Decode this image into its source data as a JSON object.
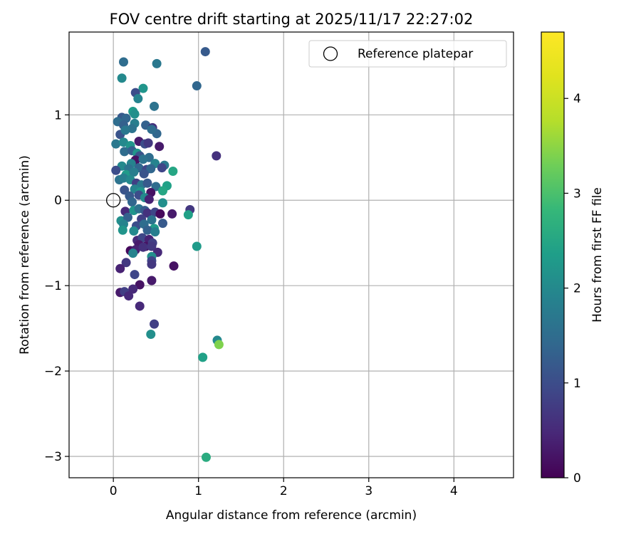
{
  "chart_data": {
    "type": "scatter",
    "title": "FOV centre drift starting at 2025/11/17 22:27:02",
    "xlabel": "Angular distance from reference (arcmin)",
    "ylabel": "Rotation from reference (arcmin)",
    "xlim": [
      -0.52,
      4.7
    ],
    "ylim": [
      -3.25,
      1.97
    ],
    "xticks": [
      0,
      1,
      2,
      3,
      4
    ],
    "yticks": [
      -3,
      -2,
      -1,
      0,
      1
    ],
    "grid": true,
    "legend": {
      "placement": "top-right",
      "entries": [
        "Reference platepar"
      ]
    },
    "reference_point": {
      "x": 0,
      "y": 0
    },
    "colorbar": {
      "label": "Hours from first FF file",
      "range": [
        0,
        4.7
      ],
      "ticks": [
        0,
        1,
        2,
        3,
        4
      ],
      "colormap": "viridis"
    },
    "points": [
      {
        "x": 0.12,
        "y": 1.62,
        "h": 1.5
      },
      {
        "x": 0.51,
        "y": 1.6,
        "h": 1.7
      },
      {
        "x": 1.08,
        "y": 1.74,
        "h": 1.2
      },
      {
        "x": 0.1,
        "y": 1.43,
        "h": 2.0
      },
      {
        "x": 0.35,
        "y": 1.31,
        "h": 2.2
      },
      {
        "x": 0.98,
        "y": 1.34,
        "h": 1.4
      },
      {
        "x": 0.26,
        "y": 1.26,
        "h": 1.0
      },
      {
        "x": 0.29,
        "y": 1.19,
        "h": 1.9
      },
      {
        "x": 0.48,
        "y": 1.1,
        "h": 1.6
      },
      {
        "x": 0.1,
        "y": 0.97,
        "h": 1.2
      },
      {
        "x": 0.15,
        "y": 0.96,
        "h": 1.4
      },
      {
        "x": 0.23,
        "y": 1.04,
        "h": 2.3
      },
      {
        "x": 0.25,
        "y": 1.01,
        "h": 2.1
      },
      {
        "x": 0.05,
        "y": 0.92,
        "h": 1.5
      },
      {
        "x": 0.12,
        "y": 0.88,
        "h": 1.3
      },
      {
        "x": 0.25,
        "y": 0.9,
        "h": 1.8
      },
      {
        "x": 0.22,
        "y": 0.84,
        "h": 1.6
      },
      {
        "x": 0.38,
        "y": 0.88,
        "h": 1.3
      },
      {
        "x": 0.46,
        "y": 0.85,
        "h": 0.6
      },
      {
        "x": 0.08,
        "y": 0.77,
        "h": 1.1
      },
      {
        "x": 0.51,
        "y": 0.78,
        "h": 1.4
      },
      {
        "x": 0.45,
        "y": 0.83,
        "h": 1.5
      },
      {
        "x": 0.14,
        "y": 0.82,
        "h": 1.7
      },
      {
        "x": 0.03,
        "y": 0.66,
        "h": 1.7
      },
      {
        "x": 0.12,
        "y": 0.68,
        "h": 2.0
      },
      {
        "x": 0.2,
        "y": 0.64,
        "h": 2.2
      },
      {
        "x": 0.3,
        "y": 0.69,
        "h": 0.3
      },
      {
        "x": 0.37,
        "y": 0.66,
        "h": 1.0
      },
      {
        "x": 0.41,
        "y": 0.67,
        "h": 0.7
      },
      {
        "x": 0.54,
        "y": 0.63,
        "h": 0.3
      },
      {
        "x": 0.13,
        "y": 0.57,
        "h": 1.5
      },
      {
        "x": 0.22,
        "y": 0.58,
        "h": 1.3
      },
      {
        "x": 0.28,
        "y": 0.55,
        "h": 2.2
      },
      {
        "x": 0.31,
        "y": 0.52,
        "h": 1.1
      },
      {
        "x": 0.42,
        "y": 0.5,
        "h": 1.5
      },
      {
        "x": 1.21,
        "y": 0.52,
        "h": 0.6
      },
      {
        "x": 0.26,
        "y": 0.47,
        "h": 0.2
      },
      {
        "x": 0.35,
        "y": 0.48,
        "h": 1.6
      },
      {
        "x": 0.21,
        "y": 0.43,
        "h": 1.9
      },
      {
        "x": 0.49,
        "y": 0.43,
        "h": 1.9
      },
      {
        "x": 0.6,
        "y": 0.41,
        "h": 1.7
      },
      {
        "x": 0.1,
        "y": 0.4,
        "h": 2.0
      },
      {
        "x": 0.18,
        "y": 0.37,
        "h": 1.6
      },
      {
        "x": 0.3,
        "y": 0.38,
        "h": 1.4
      },
      {
        "x": 0.39,
        "y": 0.36,
        "h": 0.9
      },
      {
        "x": 0.44,
        "y": 0.37,
        "h": 1.4
      },
      {
        "x": 0.57,
        "y": 0.38,
        "h": 0.9
      },
      {
        "x": 0.7,
        "y": 0.34,
        "h": 2.5
      },
      {
        "x": 0.03,
        "y": 0.35,
        "h": 1.0
      },
      {
        "x": 0.15,
        "y": 0.3,
        "h": 2.3
      },
      {
        "x": 0.24,
        "y": 0.33,
        "h": 1.8
      },
      {
        "x": 0.36,
        "y": 0.31,
        "h": 1.1
      },
      {
        "x": 0.07,
        "y": 0.24,
        "h": 1.6
      },
      {
        "x": 0.12,
        "y": 0.26,
        "h": 1.8
      },
      {
        "x": 0.2,
        "y": 0.24,
        "h": 2.0
      },
      {
        "x": 0.27,
        "y": 0.2,
        "h": 0.8
      },
      {
        "x": 0.33,
        "y": 0.18,
        "h": 1.7
      },
      {
        "x": 0.4,
        "y": 0.2,
        "h": 1.2
      },
      {
        "x": 0.5,
        "y": 0.16,
        "h": 1.5
      },
      {
        "x": 0.63,
        "y": 0.17,
        "h": 2.4
      },
      {
        "x": 0.13,
        "y": 0.12,
        "h": 1.1
      },
      {
        "x": 0.25,
        "y": 0.13,
        "h": 1.9
      },
      {
        "x": 0.32,
        "y": 0.1,
        "h": 2.2
      },
      {
        "x": 0.44,
        "y": 0.09,
        "h": 0.2
      },
      {
        "x": 0.58,
        "y": 0.11,
        "h": 2.5
      },
      {
        "x": 0.19,
        "y": 0.05,
        "h": 1.2
      },
      {
        "x": 0.3,
        "y": 0.06,
        "h": 1.0
      },
      {
        "x": 0.37,
        "y": 0.03,
        "h": 2.0
      },
      {
        "x": 0.42,
        "y": 0.01,
        "h": 0.4
      },
      {
        "x": 0.22,
        "y": -0.02,
        "h": 1.4
      },
      {
        "x": 0.58,
        "y": -0.03,
        "h": 2.1
      },
      {
        "x": 0.14,
        "y": -0.13,
        "h": 0.5
      },
      {
        "x": 0.24,
        "y": -0.12,
        "h": 2.2
      },
      {
        "x": 0.3,
        "y": -0.1,
        "h": 1.6
      },
      {
        "x": 0.37,
        "y": -0.12,
        "h": 1.2
      },
      {
        "x": 0.4,
        "y": -0.15,
        "h": 0.6
      },
      {
        "x": 0.49,
        "y": -0.14,
        "h": 0.9
      },
      {
        "x": 0.55,
        "y": -0.16,
        "h": 0.1
      },
      {
        "x": 0.69,
        "y": -0.16,
        "h": 0.3
      },
      {
        "x": 0.9,
        "y": -0.11,
        "h": 0.7
      },
      {
        "x": 0.88,
        "y": -0.17,
        "h": 2.4
      },
      {
        "x": 0.09,
        "y": -0.24,
        "h": 2.1
      },
      {
        "x": 0.17,
        "y": -0.2,
        "h": 1.3
      },
      {
        "x": 0.33,
        "y": -0.22,
        "h": 0.8
      },
      {
        "x": 0.45,
        "y": -0.23,
        "h": 1.6
      },
      {
        "x": 0.12,
        "y": -0.28,
        "h": 1.9
      },
      {
        "x": 0.27,
        "y": -0.3,
        "h": 1.0
      },
      {
        "x": 0.36,
        "y": -0.28,
        "h": 1.5
      },
      {
        "x": 0.48,
        "y": -0.33,
        "h": 2.3
      },
      {
        "x": 0.58,
        "y": -0.27,
        "h": 1.2
      },
      {
        "x": 0.11,
        "y": -0.35,
        "h": 2.2
      },
      {
        "x": 0.24,
        "y": -0.36,
        "h": 2.0
      },
      {
        "x": 0.4,
        "y": -0.35,
        "h": 1.3
      },
      {
        "x": 0.49,
        "y": -0.37,
        "h": 1.8
      },
      {
        "x": 0.28,
        "y": -0.47,
        "h": 0.5
      },
      {
        "x": 0.34,
        "y": -0.44,
        "h": 0.9
      },
      {
        "x": 0.42,
        "y": -0.46,
        "h": 0.4
      },
      {
        "x": 0.3,
        "y": -0.52,
        "h": 0.3
      },
      {
        "x": 0.38,
        "y": -0.54,
        "h": 0.2
      },
      {
        "x": 0.46,
        "y": -0.5,
        "h": 0.8
      },
      {
        "x": 0.2,
        "y": -0.59,
        "h": 0.1
      },
      {
        "x": 0.26,
        "y": -0.58,
        "h": 0.4
      },
      {
        "x": 0.35,
        "y": -0.55,
        "h": 0.6
      },
      {
        "x": 0.45,
        "y": -0.54,
        "h": 0.7
      },
      {
        "x": 0.52,
        "y": -0.61,
        "h": 0.5
      },
      {
        "x": 0.98,
        "y": -0.54,
        "h": 2.3
      },
      {
        "x": 0.23,
        "y": -0.62,
        "h": 1.9
      },
      {
        "x": 0.45,
        "y": -0.66,
        "h": 2.1
      },
      {
        "x": 0.15,
        "y": -0.73,
        "h": 0.7
      },
      {
        "x": 0.45,
        "y": -0.71,
        "h": 0.9
      },
      {
        "x": 0.45,
        "y": -0.75,
        "h": 0.7
      },
      {
        "x": 0.71,
        "y": -0.77,
        "h": 0.2
      },
      {
        "x": 0.08,
        "y": -0.8,
        "h": 0.4
      },
      {
        "x": 0.25,
        "y": -0.87,
        "h": 0.9
      },
      {
        "x": 0.45,
        "y": -0.94,
        "h": 0.3
      },
      {
        "x": 0.31,
        "y": -0.99,
        "h": 0.2
      },
      {
        "x": 0.23,
        "y": -1.04,
        "h": 0.5
      },
      {
        "x": 0.08,
        "y": -1.08,
        "h": 0.3
      },
      {
        "x": 0.13,
        "y": -1.07,
        "h": 0.8
      },
      {
        "x": 0.18,
        "y": -1.12,
        "h": 0.5
      },
      {
        "x": 0.31,
        "y": -1.24,
        "h": 0.5
      },
      {
        "x": 0.48,
        "y": -1.45,
        "h": 0.8
      },
      {
        "x": 0.44,
        "y": -1.57,
        "h": 2.1
      },
      {
        "x": 1.22,
        "y": -1.64,
        "h": 2.0
      },
      {
        "x": 1.24,
        "y": -1.69,
        "h": 3.4
      },
      {
        "x": 1.05,
        "y": -1.84,
        "h": 2.4
      },
      {
        "x": 1.09,
        "y": -3.01,
        "h": 2.6
      }
    ]
  }
}
